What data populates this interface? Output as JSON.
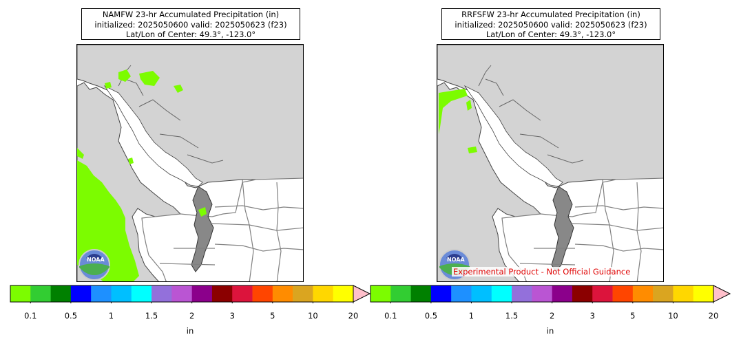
{
  "panels": [
    {
      "title_line1": "NAMFW 23-hr Accumulated Precipitation (in)",
      "title_line2": "initialized: 2025050600 valid: 2025050623 (f23)",
      "title_line3": "Lat/Lon of Center: 49.3°, -123.0°",
      "logo_text": "NOAA"
    },
    {
      "title_line1": "RRFSFW 23-hr Accumulated Precipitation (in)",
      "title_line2": "initialized: 2025050600 valid: 2025050623 (f23)",
      "title_line3": "Lat/Lon of Center: 49.3°, -123.0°",
      "logo_text": "NOAA",
      "disclaimer": "Experimental Product - Not Official Guidance"
    }
  ],
  "colorbar": {
    "units": "in",
    "tick_labels": [
      "0.1",
      "0.5",
      "1",
      "1.5",
      "2",
      "3",
      "5",
      "10",
      "20"
    ],
    "colors": [
      "#7cfc00",
      "#32cd32",
      "#008000",
      "#0000ff",
      "#1e90ff",
      "#00bfff",
      "#00ffff",
      "#9370db",
      "#ba55d3",
      "#8b008b",
      "#8b0000",
      "#dc143c",
      "#ff4500",
      "#ff8c00",
      "#daa520",
      "#ffd700",
      "#ffff00"
    ],
    "extend_color": "#ffc0cb"
  },
  "map_colors": {
    "land": "#d3d3d3",
    "water": "#ffffff",
    "precip": "#7cfc00",
    "borders": "#808080"
  }
}
